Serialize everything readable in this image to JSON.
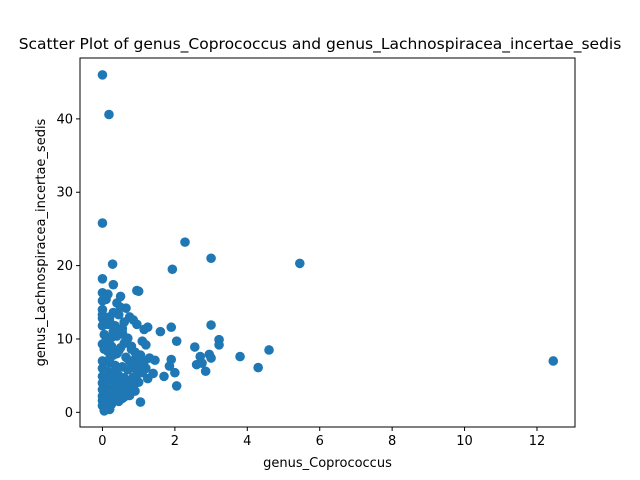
{
  "chart_data": {
    "type": "scatter",
    "title": "Scatter Plot of genus_Coprococcus and genus_Lachnospiracea_incertae_sedis",
    "xlabel": "genus_Coprococcus",
    "ylabel": "genus_Lachnospiracea_incertae_sedis",
    "xlim": [
      -0.62,
      13.05
    ],
    "ylim": [
      -2.0,
      48.3
    ],
    "xticks": [
      0,
      2,
      4,
      6,
      8,
      10,
      12
    ],
    "yticks": [
      0,
      10,
      20,
      30,
      40
    ],
    "grid": false,
    "color": "#1f77b4",
    "points": [
      [
        0.0,
        46.0
      ],
      [
        0.18,
        40.6
      ],
      [
        0.0,
        25.8
      ],
      [
        2.28,
        23.2
      ],
      [
        3.0,
        21.0
      ],
      [
        5.45,
        20.3
      ],
      [
        0.28,
        20.2
      ],
      [
        1.93,
        19.5
      ],
      [
        0.0,
        18.2
      ],
      [
        0.3,
        17.4
      ],
      [
        0.95,
        16.6
      ],
      [
        1.0,
        16.5
      ],
      [
        0.0,
        16.3
      ],
      [
        0.15,
        16.1
      ],
      [
        0.5,
        15.8
      ],
      [
        0.0,
        15.2
      ],
      [
        0.4,
        14.9
      ],
      [
        0.65,
        14.2
      ],
      [
        0.0,
        14.0
      ],
      [
        0.3,
        13.6
      ],
      [
        0.45,
        13.3
      ],
      [
        0.75,
        13.0
      ],
      [
        0.85,
        12.6
      ],
      [
        0.0,
        12.8
      ],
      [
        0.2,
        12.4
      ],
      [
        0.95,
        12.0
      ],
      [
        3.0,
        11.9
      ],
      [
        1.15,
        11.3
      ],
      [
        1.9,
        11.6
      ],
      [
        1.25,
        11.6
      ],
      [
        1.6,
        11.0
      ],
      [
        0.0,
        11.8
      ],
      [
        0.3,
        11.0
      ],
      [
        0.55,
        10.8
      ],
      [
        0.7,
        10.1
      ],
      [
        0.05,
        10.6
      ],
      [
        0.4,
        10.4
      ],
      [
        3.22,
        9.9
      ],
      [
        2.05,
        9.7
      ],
      [
        1.1,
        9.7
      ],
      [
        1.2,
        9.2
      ],
      [
        0.6,
        9.4
      ],
      [
        3.22,
        9.2
      ],
      [
        2.55,
        8.9
      ],
      [
        4.6,
        8.5
      ],
      [
        0.0,
        9.3
      ],
      [
        0.25,
        9.0
      ],
      [
        0.5,
        8.8
      ],
      [
        0.8,
        8.6
      ],
      [
        0.15,
        8.3
      ],
      [
        0.4,
        8.0
      ],
      [
        2.95,
        7.9
      ],
      [
        3.0,
        7.4
      ],
      [
        3.8,
        7.6
      ],
      [
        2.7,
        7.6
      ],
      [
        1.05,
        7.8
      ],
      [
        1.3,
        7.4
      ],
      [
        1.45,
        7.1
      ],
      [
        0.9,
        7.2
      ],
      [
        0.65,
        7.5
      ],
      [
        12.45,
        7.0
      ],
      [
        1.9,
        7.2
      ],
      [
        2.6,
        6.5
      ],
      [
        2.75,
        6.7
      ],
      [
        4.3,
        6.1
      ],
      [
        1.85,
        6.3
      ],
      [
        2.85,
        5.6
      ],
      [
        1.2,
        6.0
      ],
      [
        1.05,
        5.9
      ],
      [
        0.85,
        6.1
      ],
      [
        0.0,
        7.0
      ],
      [
        0.2,
        6.8
      ],
      [
        0.35,
        6.4
      ],
      [
        0.55,
        6.2
      ],
      [
        0.7,
        5.8
      ],
      [
        0.0,
        6.0
      ],
      [
        0.15,
        5.6
      ],
      [
        0.3,
        5.3
      ],
      [
        2.0,
        5.4
      ],
      [
        1.4,
        5.3
      ],
      [
        1.1,
        5.4
      ],
      [
        0.95,
        5.1
      ],
      [
        1.7,
        4.9
      ],
      [
        0.45,
        5.0
      ],
      [
        0.6,
        4.7
      ],
      [
        0.8,
        4.4
      ],
      [
        1.0,
        4.1
      ],
      [
        0.0,
        4.9
      ],
      [
        0.2,
        4.5
      ],
      [
        0.35,
        4.2
      ],
      [
        0.55,
        4.0
      ],
      [
        0.7,
        3.8
      ],
      [
        0.0,
        4.0
      ],
      [
        0.1,
        3.6
      ],
      [
        0.3,
        3.3
      ],
      [
        2.05,
        3.6
      ],
      [
        0.85,
        3.4
      ],
      [
        0.5,
        3.0
      ],
      [
        0.65,
        2.7
      ],
      [
        0.0,
        3.1
      ],
      [
        0.2,
        2.8
      ],
      [
        0.4,
        2.5
      ],
      [
        0.75,
        2.3
      ],
      [
        0.0,
        2.2
      ],
      [
        0.15,
        2.0
      ],
      [
        0.35,
        1.8
      ],
      [
        0.55,
        1.9
      ],
      [
        1.05,
        1.4
      ],
      [
        0.0,
        1.6
      ],
      [
        0.1,
        1.3
      ],
      [
        0.25,
        1.1
      ],
      [
        0.0,
        0.9
      ],
      [
        0.1,
        0.6
      ],
      [
        0.2,
        0.4
      ],
      [
        0.05,
        0.2
      ],
      [
        0.45,
        1.5
      ],
      [
        0.6,
        2.1
      ],
      [
        0.3,
        7.8
      ],
      [
        0.45,
        8.4
      ],
      [
        0.1,
        9.8
      ],
      [
        0.25,
        10.2
      ],
      [
        0.55,
        11.4
      ],
      [
        0.15,
        12.0
      ],
      [
        0.35,
        11.8
      ],
      [
        0.6,
        12.3
      ],
      [
        0.0,
        13.3
      ],
      [
        0.2,
        13.0
      ],
      [
        0.5,
        14.3
      ],
      [
        0.1,
        15.4
      ],
      [
        0.65,
        9.9
      ],
      [
        0.8,
        9.0
      ],
      [
        0.9,
        8.2
      ],
      [
        0.75,
        7.0
      ],
      [
        0.95,
        6.6
      ],
      [
        1.15,
        6.9
      ],
      [
        0.4,
        6.0
      ],
      [
        0.25,
        5.0
      ],
      [
        0.85,
        4.8
      ],
      [
        1.25,
        4.6
      ],
      [
        0.65,
        3.2
      ],
      [
        0.9,
        2.9
      ],
      [
        0.45,
        3.6
      ],
      [
        0.05,
        5.3
      ],
      [
        0.05,
        8.6
      ],
      [
        0.2,
        7.3
      ]
    ]
  }
}
